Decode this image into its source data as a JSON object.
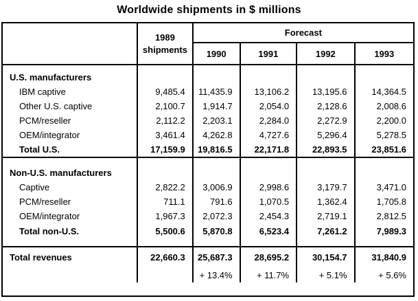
{
  "title": "Worldwide shipments in $ millions",
  "header": {
    "col1_line1": "1989",
    "col1_line2": "shipments",
    "forecast": "Forecast",
    "years": [
      "1990",
      "1991",
      "1992",
      "1993"
    ]
  },
  "us": {
    "heading": "U.S. manufacturers",
    "rows": [
      {
        "label": "IBM captive",
        "v1989": "9,485.4",
        "v1990": "11,435.9",
        "v1991": "13,106.2",
        "v1992": "13,195.6",
        "v1993": "14,364.5"
      },
      {
        "label": "Other U.S. captive",
        "v1989": "2,100.7",
        "v1990": "1,914.7",
        "v1991": "2,054.0",
        "v1992": "2,128.6",
        "v1993": "2,008.6"
      },
      {
        "label": "PCM/reseller",
        "v1989": "2,112.2",
        "v1990": "2,203.1",
        "v1991": "2,284.0",
        "v1992": "2,272.9",
        "v1993": "2,200.0"
      },
      {
        "label": "OEM/integrator",
        "v1989": "3,461.4",
        "v1990": "4,262.8",
        "v1991": "4,727.6",
        "v1992": "5,296.4",
        "v1993": "5,278.5"
      }
    ],
    "total": {
      "label": "Total U.S.",
      "v1989": "17,159.9",
      "v1990": "19,816.5",
      "v1991": "22,171.8",
      "v1992": "22,893.5",
      "v1993": "23,851.6"
    }
  },
  "nonus": {
    "heading": "Non-U.S. manufacturers",
    "rows": [
      {
        "label": "Captive",
        "v1989": "2,822.2",
        "v1990": "3,006.9",
        "v1991": "2,998.6",
        "v1992": "3,179.7",
        "v1993": "3,471.0"
      },
      {
        "label": "PCM/reseller",
        "v1989": "711.1",
        "v1990": "791.6",
        "v1991": "1,070.5",
        "v1992": "1,362.4",
        "v1993": "1,705.8"
      },
      {
        "label": "OEM/integrator",
        "v1989": "1,967.3",
        "v1990": "2,072.3",
        "v1991": "2,454.3",
        "v1992": "2,719.1",
        "v1993": "2,812.5"
      }
    ],
    "total": {
      "label": "Total non-U.S.",
      "v1989": "5,500.6",
      "v1990": "5,870.8",
      "v1991": "6,523.4",
      "v1992": "7,261.2",
      "v1993": "7,989.3"
    }
  },
  "revenues": {
    "label": "Total revenues",
    "v1989": "22,660.3",
    "v1990": "25,687.3",
    "v1991": "28,695.2",
    "v1992": "30,154.7",
    "v1993": "31,840.9",
    "growth": {
      "g1990": "+ 13.4%",
      "g1991": "+ 11.7%",
      "g1992": "+ 5.1%",
      "g1993": "+ 5.6%"
    }
  }
}
